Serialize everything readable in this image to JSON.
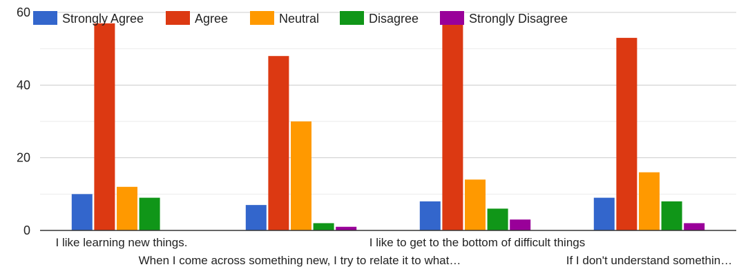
{
  "chart_data": {
    "type": "bar",
    "categories": [
      "I like learning new things.",
      "When I come across something new, I try to relate it to what…",
      "I like to get to the bottom of difficult things",
      "If I don't understand somethin…"
    ],
    "series": [
      {
        "name": "Strongly Agree",
        "color": "#3366cc",
        "values": [
          10,
          7,
          8,
          9
        ]
      },
      {
        "name": "Agree",
        "color": "#dc3912",
        "values": [
          57,
          48,
          57,
          53
        ]
      },
      {
        "name": "Neutral",
        "color": "#ff9900",
        "values": [
          12,
          30,
          14,
          16
        ]
      },
      {
        "name": "Disagree",
        "color": "#109618",
        "values": [
          9,
          2,
          6,
          8
        ]
      },
      {
        "name": "Strongly Disagree",
        "color": "#990099",
        "values": [
          0,
          1,
          3,
          2
        ]
      }
    ],
    "ylim": [
      0,
      60
    ],
    "yticks": [
      0,
      20,
      40,
      60
    ],
    "grid": true,
    "legend_position": "top"
  }
}
